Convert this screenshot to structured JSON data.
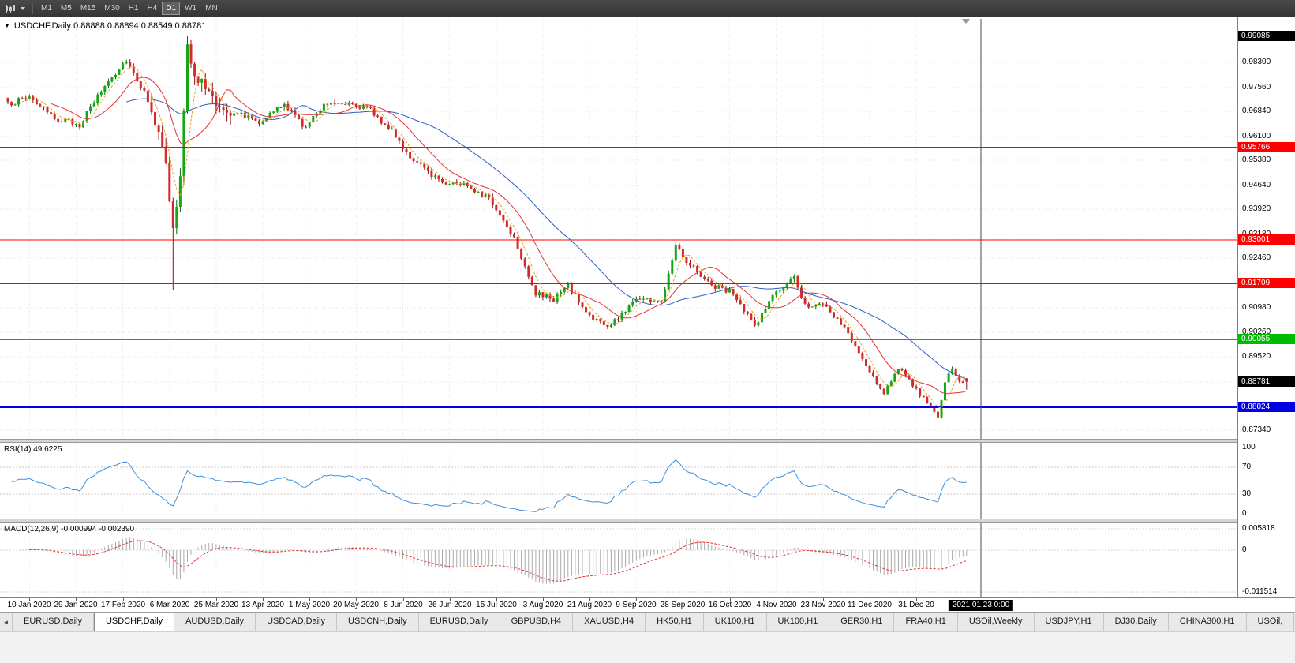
{
  "toolbar": {
    "timeframes": [
      "M1",
      "M5",
      "M15",
      "M30",
      "H1",
      "H4",
      "D1",
      "W1",
      "MN"
    ],
    "active_timeframe": "D1"
  },
  "chart": {
    "collapse_arrow": "▼",
    "title_line": "USDCHF,Daily 0.88888 0.88894 0.88549 0.88781",
    "symbol": "USDCHF",
    "period": "Daily",
    "ohlc": {
      "open": "0.88888",
      "high": "0.88894",
      "low": "0.88549",
      "close": "0.88781"
    },
    "price_axis": {
      "grid_labels": [
        "0.98300",
        "0.97560",
        "0.96840",
        "0.96100",
        "0.95380",
        "0.94640",
        "0.93920",
        "0.93180",
        "0.92460",
        "0.91720",
        "0.90980",
        "0.90260",
        "0.89520",
        "0.88780",
        "0.88040",
        "0.87340"
      ],
      "tags": [
        {
          "text": "0.99085",
          "bg": "#000000"
        },
        {
          "text": "0.95766",
          "bg": "#FF0000"
        },
        {
          "text": "0.93001",
          "bg": "#FF0000"
        },
        {
          "text": "0.91709",
          "bg": "#FF0000"
        },
        {
          "text": "0.90055",
          "bg": "#00BB00"
        },
        {
          "text": "0.88781",
          "bg": "#000000"
        },
        {
          "text": "0.88024",
          "bg": "#0000E0"
        }
      ]
    },
    "time_axis": {
      "ticks": [
        {
          "label": "10 Jan 2020",
          "bar": 6
        },
        {
          "label": "29 Jan 2020",
          "bar": 19
        },
        {
          "label": "17 Feb 2020",
          "bar": 32
        },
        {
          "label": "6 Mar 2020",
          "bar": 45
        },
        {
          "label": "25 Mar 2020",
          "bar": 58
        },
        {
          "label": "13 Apr 2020",
          "bar": 71
        },
        {
          "label": "1 May 2020",
          "bar": 84
        },
        {
          "label": "20 May 2020",
          "bar": 97
        },
        {
          "label": "8 Jun 2020",
          "bar": 110
        },
        {
          "label": "26 Jun 2020",
          "bar": 123
        },
        {
          "label": "15 Jul 2020",
          "bar": 136
        },
        {
          "label": "3 Aug 2020",
          "bar": 149
        },
        {
          "label": "21 Aug 2020",
          "bar": 162
        },
        {
          "label": "9 Sep 2020",
          "bar": 175
        },
        {
          "label": "28 Sep 2020",
          "bar": 188
        },
        {
          "label": "16 Oct 2020",
          "bar": 201
        },
        {
          "label": "4 Nov 2020",
          "bar": 214
        },
        {
          "label": "23 Nov 2020",
          "bar": 227
        },
        {
          "label": "11 Dec 2020",
          "bar": 240
        },
        {
          "label": "31 Dec 20",
          "bar": 253
        }
      ],
      "event_tag": {
        "label": "2021.01.23 0:00",
        "bar": 271
      }
    }
  },
  "rsi": {
    "label": "RSI(14) 49.6225",
    "levels": [
      "100",
      "70",
      "30",
      "0"
    ]
  },
  "macd": {
    "label": "MACD(12,26,9) -0.000994 -0.002390",
    "axis_labels": [
      "0.005818",
      "0",
      "-0.011514"
    ]
  },
  "tabs": {
    "scroll_left": "◄",
    "active_index": 1,
    "items": [
      "EURUSD,Daily",
      "USDCHF,Daily",
      "AUDUSD,Daily",
      "USDCAD,Daily",
      "USDCNH,Daily",
      "EURUSD,Daily",
      "GBPUSD,H4",
      "XAUUSD,H4",
      "HK50,H1",
      "UK100,H1",
      "UK100,H1",
      "GER30,H1",
      "FRA40,H1",
      "USOil,Weekly",
      "USDJPY,H1",
      "DJ30,Daily",
      "CHINA300,H1",
      "USOil,"
    ],
    "tooltip": ""
  },
  "chart_data": {
    "type": "candlestick",
    "symbol": "USDCHF",
    "timeframe": "Daily",
    "bars_count": 268,
    "visible_range": {
      "first_tick": "10 Jan 2020",
      "last_tick": "31 Dec 20",
      "price_min": 0.8734,
      "price_max": 0.99085
    },
    "last_ohlc": [
      0.88888,
      0.88894,
      0.88549,
      0.88781
    ],
    "price_path_anchors": [
      [
        0,
        0.9705
      ],
      [
        6,
        0.973
      ],
      [
        12,
        0.9668
      ],
      [
        20,
        0.9645
      ],
      [
        27,
        0.9762
      ],
      [
        33,
        0.984
      ],
      [
        40,
        0.97
      ],
      [
        44,
        0.952
      ],
      [
        46,
        0.933
      ],
      [
        48,
        0.948
      ],
      [
        50,
        0.987
      ],
      [
        53,
        0.978
      ],
      [
        58,
        0.971
      ],
      [
        64,
        0.968
      ],
      [
        70,
        0.9655
      ],
      [
        77,
        0.9705
      ],
      [
        83,
        0.9635
      ],
      [
        88,
        0.971
      ],
      [
        95,
        0.9712
      ],
      [
        101,
        0.9688
      ],
      [
        107,
        0.9625
      ],
      [
        113,
        0.9535
      ],
      [
        121,
        0.9475
      ],
      [
        128,
        0.9465
      ],
      [
        134,
        0.9425
      ],
      [
        141,
        0.931
      ],
      [
        147,
        0.914
      ],
      [
        152,
        0.9125
      ],
      [
        156,
        0.9165
      ],
      [
        161,
        0.9085
      ],
      [
        167,
        0.904
      ],
      [
        170,
        0.9068
      ],
      [
        175,
        0.913
      ],
      [
        182,
        0.9115
      ],
      [
        186,
        0.9292
      ],
      [
        189,
        0.924
      ],
      [
        196,
        0.9165
      ],
      [
        201,
        0.915
      ],
      [
        208,
        0.9045
      ],
      [
        213,
        0.9135
      ],
      [
        219,
        0.9185
      ],
      [
        222,
        0.911
      ],
      [
        227,
        0.9105
      ],
      [
        233,
        0.904
      ],
      [
        240,
        0.8905
      ],
      [
        244,
        0.8845
      ],
      [
        248,
        0.892
      ],
      [
        253,
        0.8855
      ],
      [
        257,
        0.88
      ],
      [
        259,
        0.877
      ],
      [
        261,
        0.888
      ],
      [
        263,
        0.8915
      ],
      [
        265,
        0.888
      ],
      [
        267,
        0.88781
      ]
    ],
    "extremes": {
      "high_bar": 50,
      "high": 0.99085,
      "selloff_low_bar": 46,
      "selloff_low": 0.9153,
      "min_bar": 259,
      "min": 0.8734
    },
    "horizontal_levels": [
      {
        "price": 0.95766,
        "color": "#FF0000",
        "width": 2
      },
      {
        "price": 0.93001,
        "color": "#FF0000",
        "width": 1
      },
      {
        "price": 0.91709,
        "color": "#FF0000",
        "width": 2
      },
      {
        "price": 0.90055,
        "color": "#00BB00",
        "width": 2
      },
      {
        "price": 0.88024,
        "color": "#0000E0",
        "width": 2
      }
    ],
    "vertical_line_bar": 271,
    "moving_averages": [
      {
        "period": 34,
        "color": "#2E5CC5",
        "dash": ""
      },
      {
        "period": 13,
        "color": "#E03232",
        "dash": ""
      },
      {
        "period": 5,
        "color": "#E8A21C",
        "dash": "3,2"
      }
    ],
    "rsi": {
      "period": 14,
      "current": 49.6225,
      "color": "#3E8EDE",
      "levels": [
        70,
        30
      ],
      "range": [
        0,
        100
      ]
    },
    "macd": {
      "fast": 12,
      "slow": 26,
      "signal": 9,
      "current": -0.000994,
      "current_signal": -0.00239,
      "axis_range": [
        0.005818,
        -0.011514
      ],
      "histogram_color": "#A9A9A9",
      "signal_color": "#E03232"
    }
  }
}
